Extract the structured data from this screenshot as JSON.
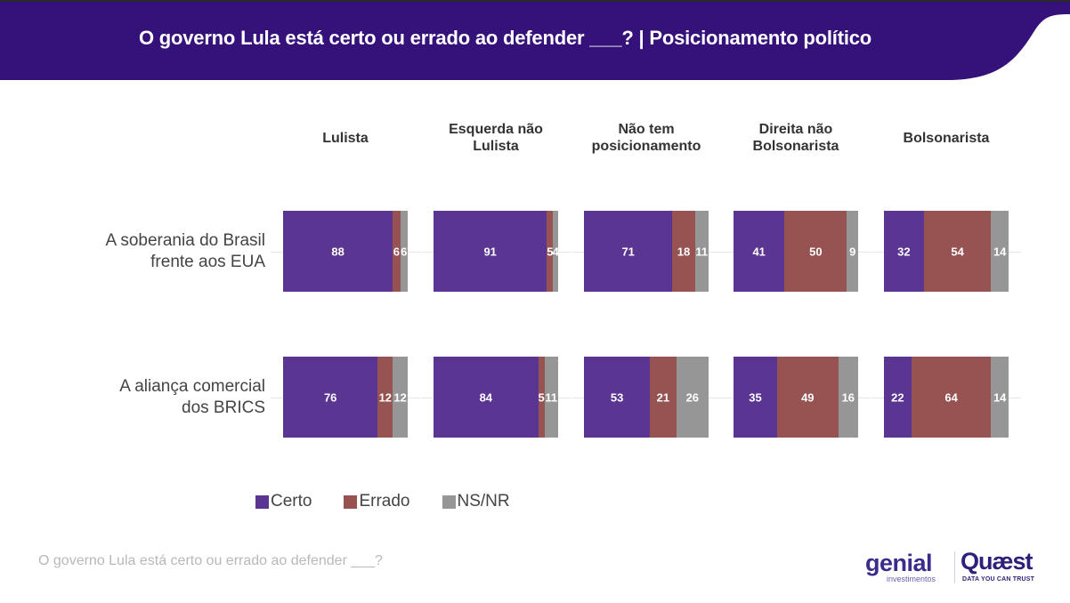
{
  "header": {
    "title": "O governo Lula está certo ou errado ao defender ___? | Posicionamento político",
    "background_color": "#35117a"
  },
  "footer": {
    "note": "O governo Lula está certo ou errado ao defender ___?",
    "logos": {
      "genial": "genial",
      "genial_sub": "investimentos",
      "quaest": "Quæst",
      "quaest_sub": "DATA YOU CAN TRUST"
    }
  },
  "chart_data": {
    "type": "bar",
    "orientation": "horizontal-stacked-100",
    "title": "O governo Lula está certo ou errado ao defender ___? | Posicionamento político",
    "xlabel": "",
    "ylabel": "",
    "xlim": [
      0,
      100
    ],
    "grid": false,
    "legend_position": "bottom-left",
    "panels": [
      "Lulista",
      "Esquerda não\nLulista",
      "Não tem\nposicionamento",
      "Direita não\nBolsonarista",
      "Bolsonarista"
    ],
    "categories": [
      "A soberania do Brasil\nfrente aos EUA",
      "A aliança comercial\ndos BRICS"
    ],
    "series": [
      {
        "name": "Certo",
        "color": "#5b3592",
        "values": [
          [
            88,
            91,
            71,
            41,
            32
          ],
          [
            76,
            84,
            53,
            35,
            22
          ]
        ]
      },
      {
        "name": "Errado",
        "color": "#975252",
        "values": [
          [
            6,
            5,
            18,
            50,
            54
          ],
          [
            12,
            5,
            21,
            49,
            64
          ]
        ]
      },
      {
        "name": "NS/NR",
        "color": "#969696",
        "values": [
          [
            6,
            4,
            11,
            9,
            14
          ],
          [
            12,
            11,
            26,
            16,
            14
          ]
        ]
      }
    ],
    "data_labels": true
  }
}
